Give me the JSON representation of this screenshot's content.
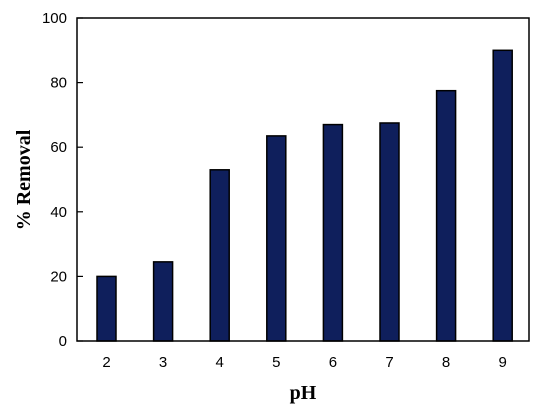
{
  "chart_data": {
    "type": "bar",
    "title": "",
    "xlabel": "pH",
    "ylabel": "% Removal",
    "categories": [
      "2",
      "3",
      "4",
      "5",
      "6",
      "7",
      "8",
      "9"
    ],
    "values": [
      20,
      24.5,
      53,
      63.5,
      67,
      67.5,
      77.5,
      90
    ],
    "ylim": [
      0,
      100
    ],
    "yticks": [
      0,
      20,
      40,
      60,
      80,
      100
    ],
    "grid": false,
    "legend": "none",
    "bar_color": "#0f1f5c",
    "bar_edge_color": "#000000"
  }
}
